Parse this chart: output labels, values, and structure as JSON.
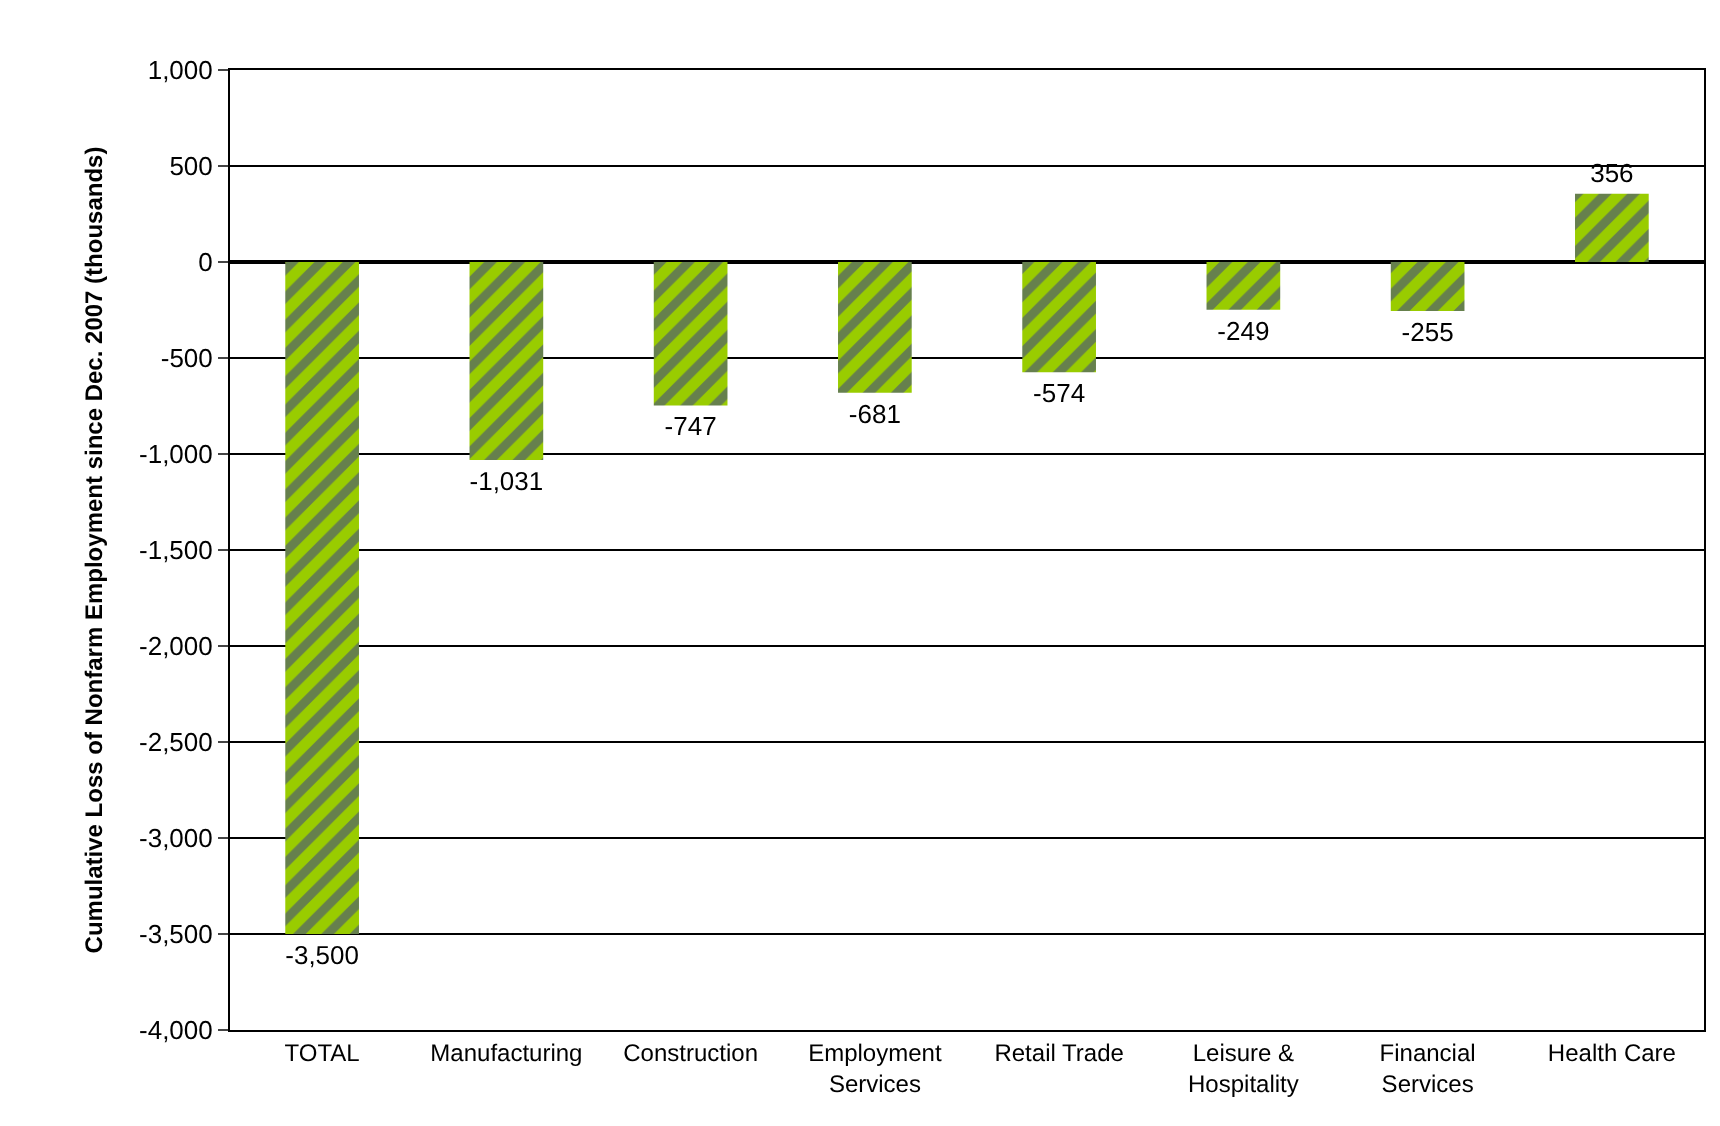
{
  "chart_data": {
    "type": "bar",
    "ylabel": "Cumulative Loss of Nonfarm Employment since Dec. 2007 (thousands)",
    "categories": [
      "TOTAL",
      "Manufacturing",
      "Construction",
      "Employment\nServices",
      "Retail Trade",
      "Leisure &\nHospitality",
      "Financial\nServices",
      "Health Care"
    ],
    "values": [
      -3500,
      -1031,
      -747,
      -681,
      -574,
      -249,
      -255,
      356
    ],
    "value_labels": [
      "-3,500",
      "-1,031",
      "-747",
      "-681",
      "-574",
      "-249",
      "-255",
      "356"
    ],
    "color": "#99cc00",
    "ylim": [
      -4000,
      1000
    ],
    "yticks": [
      {
        "value": 1000,
        "label": "1,000"
      },
      500,
      0,
      -500,
      {
        "value": -1000,
        "label": "-1,000"
      },
      {
        "value": -1500,
        "label": "-1,500"
      },
      {
        "value": -2000,
        "label": "-2,000"
      },
      {
        "value": -2500,
        "label": "-2,500"
      },
      {
        "value": -3000,
        "label": "-3,000"
      },
      {
        "value": -3500,
        "label": "-3,500"
      },
      {
        "value": -4000,
        "label": "-4,000"
      }
    ],
    "grid": "y",
    "legend": false
  }
}
